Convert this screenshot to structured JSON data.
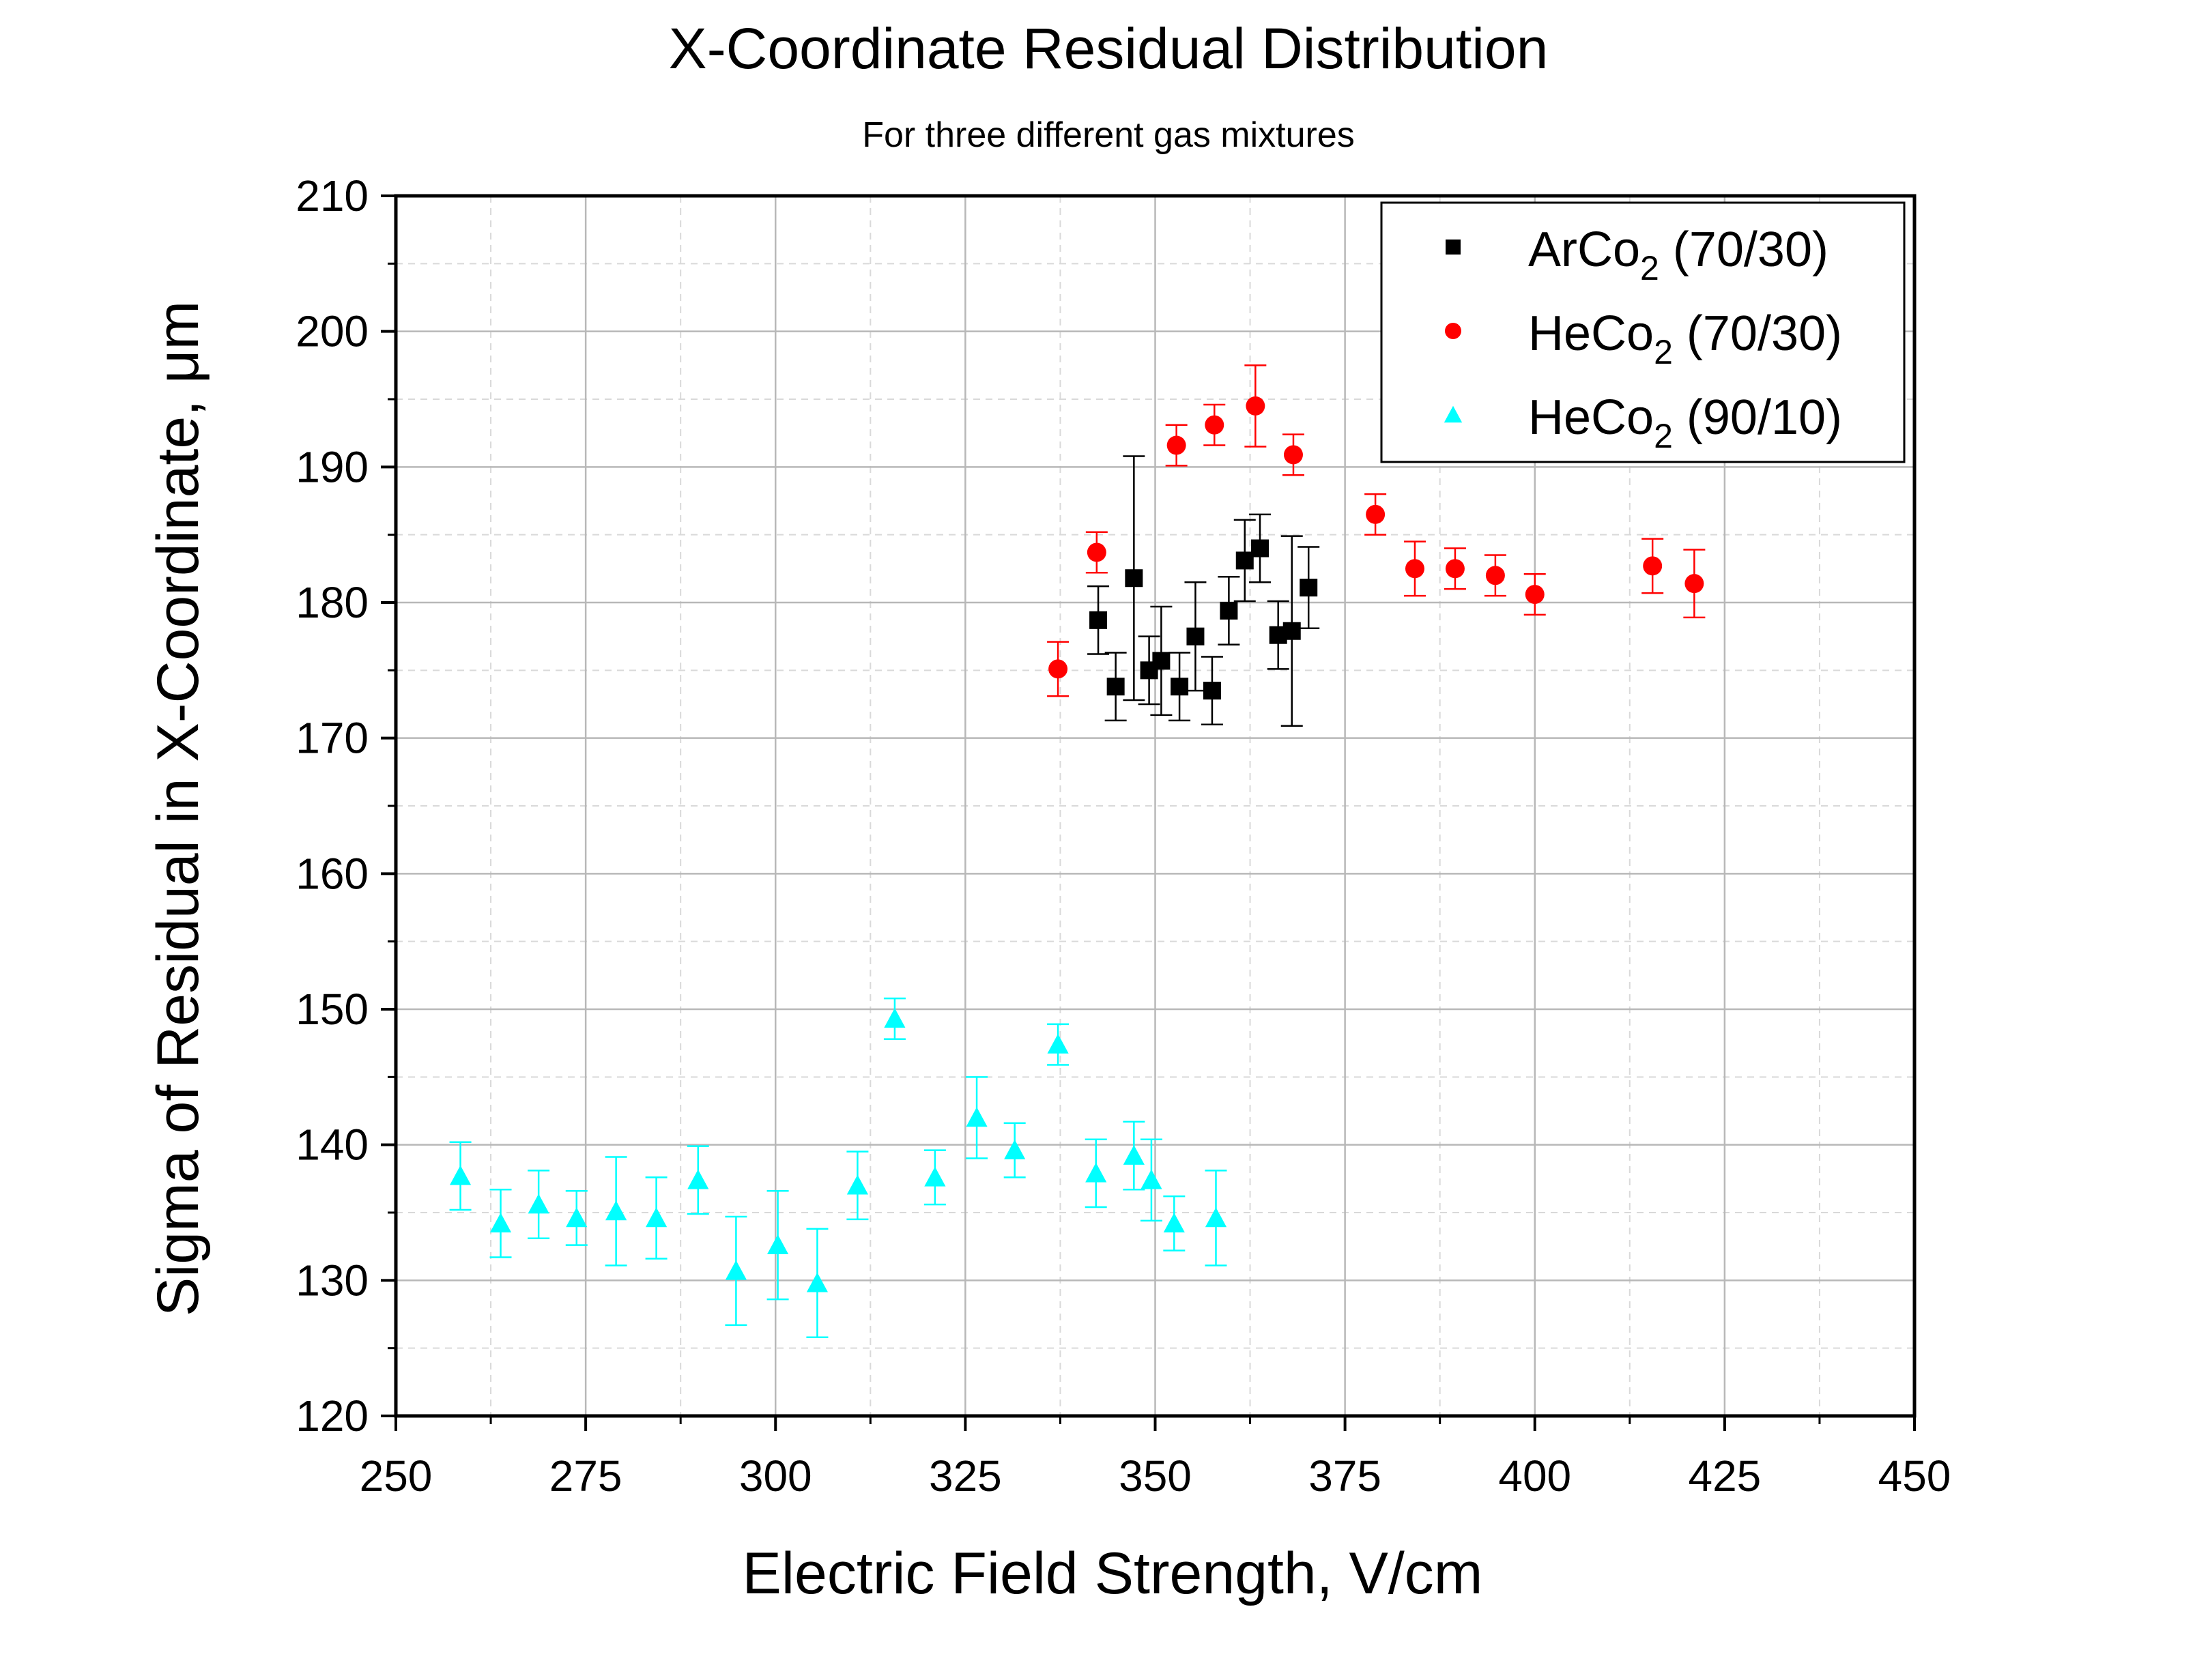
{
  "chart_data": {
    "type": "scatter",
    "title": "X-Coordinate Residual Distribution",
    "subtitle": "For three different gas mixtures",
    "xlabel": "Electric Field Strength, V/cm",
    "ylabel": "Sigma of Residual in X-Coordinate, μm",
    "xlim": [
      250,
      450
    ],
    "ylim": [
      120,
      210
    ],
    "xticks": [
      250,
      275,
      300,
      325,
      350,
      375,
      400,
      425,
      450
    ],
    "yticks": [
      120,
      130,
      140,
      150,
      160,
      170,
      180,
      190,
      200,
      210
    ],
    "grid": true,
    "legend_position": "top-right",
    "series": [
      {
        "name": "ArCo",
        "name_sub": "2",
        "name_suffix": " (70/30)",
        "marker": "square",
        "color": "#000000",
        "points": [
          {
            "x": 342.5,
            "y": 178.7,
            "err": 2.5
          },
          {
            "x": 344.8,
            "y": 173.8,
            "err": 2.5
          },
          {
            "x": 347.2,
            "y": 181.8,
            "err": 9.0
          },
          {
            "x": 349.2,
            "y": 175.0,
            "err": 2.5
          },
          {
            "x": 350.8,
            "y": 175.7,
            "err": 4.0
          },
          {
            "x": 353.2,
            "y": 173.8,
            "err": 2.5
          },
          {
            "x": 355.3,
            "y": 177.5,
            "err": 4.0
          },
          {
            "x": 357.5,
            "y": 173.5,
            "err": 2.5
          },
          {
            "x": 359.7,
            "y": 179.4,
            "err": 2.5
          },
          {
            "x": 361.8,
            "y": 183.1,
            "err": 3.0
          },
          {
            "x": 363.8,
            "y": 184.0,
            "err": 2.5
          },
          {
            "x": 366.2,
            "y": 177.6,
            "err": 2.5
          },
          {
            "x": 368.0,
            "y": 177.9,
            "err": 7.0
          },
          {
            "x": 370.2,
            "y": 181.1,
            "err": 3.0
          }
        ]
      },
      {
        "name": "HeCo",
        "name_sub": "2",
        "name_suffix": " (70/30)",
        "marker": "circle",
        "color": "#ff0000",
        "points": [
          {
            "x": 337.2,
            "y": 175.1,
            "err": 2.0
          },
          {
            "x": 342.3,
            "y": 183.7,
            "err": 1.5
          },
          {
            "x": 352.8,
            "y": 191.6,
            "err": 1.5
          },
          {
            "x": 357.8,
            "y": 193.1,
            "err": 1.5
          },
          {
            "x": 363.2,
            "y": 194.5,
            "err": 3.0
          },
          {
            "x": 368.2,
            "y": 190.9,
            "err": 1.5
          },
          {
            "x": 379.0,
            "y": 186.5,
            "err": 1.5
          },
          {
            "x": 384.2,
            "y": 182.5,
            "err": 2.0
          },
          {
            "x": 389.5,
            "y": 182.5,
            "err": 1.5
          },
          {
            "x": 394.8,
            "y": 182.0,
            "err": 1.5
          },
          {
            "x": 400.0,
            "y": 180.6,
            "err": 1.5
          },
          {
            "x": 415.5,
            "y": 182.7,
            "err": 2.0
          },
          {
            "x": 421.0,
            "y": 181.4,
            "err": 2.5
          }
        ]
      },
      {
        "name": "HeCo",
        "name_sub": "2",
        "name_suffix": " (90/10)",
        "marker": "triangle",
        "color": "#00ffff",
        "points": [
          {
            "x": 258.5,
            "y": 137.7,
            "err": 2.5
          },
          {
            "x": 263.8,
            "y": 134.2,
            "err": 2.5
          },
          {
            "x": 268.8,
            "y": 135.6,
            "err": 2.5
          },
          {
            "x": 273.8,
            "y": 134.6,
            "err": 2.0
          },
          {
            "x": 279.0,
            "y": 135.1,
            "err": 4.0
          },
          {
            "x": 284.3,
            "y": 134.6,
            "err": 3.0
          },
          {
            "x": 289.8,
            "y": 137.4,
            "err": 2.5
          },
          {
            "x": 294.8,
            "y": 130.7,
            "err": 4.0
          },
          {
            "x": 300.3,
            "y": 132.6,
            "err": 4.0
          },
          {
            "x": 305.5,
            "y": 129.8,
            "err": 4.0
          },
          {
            "x": 310.8,
            "y": 137.0,
            "err": 2.5
          },
          {
            "x": 315.7,
            "y": 149.3,
            "err": 1.5
          },
          {
            "x": 321.0,
            "y": 137.6,
            "err": 2.0
          },
          {
            "x": 326.5,
            "y": 142.0,
            "err": 3.0
          },
          {
            "x": 331.5,
            "y": 139.6,
            "err": 2.0
          },
          {
            "x": 337.2,
            "y": 147.4,
            "err": 1.5
          },
          {
            "x": 342.2,
            "y": 137.9,
            "err": 2.5
          },
          {
            "x": 347.2,
            "y": 139.2,
            "err": 2.5
          },
          {
            "x": 349.5,
            "y": 137.4,
            "err": 3.0
          },
          {
            "x": 352.5,
            "y": 134.2,
            "err": 2.0
          },
          {
            "x": 358.0,
            "y": 134.6,
            "err": 3.5
          }
        ]
      }
    ]
  }
}
